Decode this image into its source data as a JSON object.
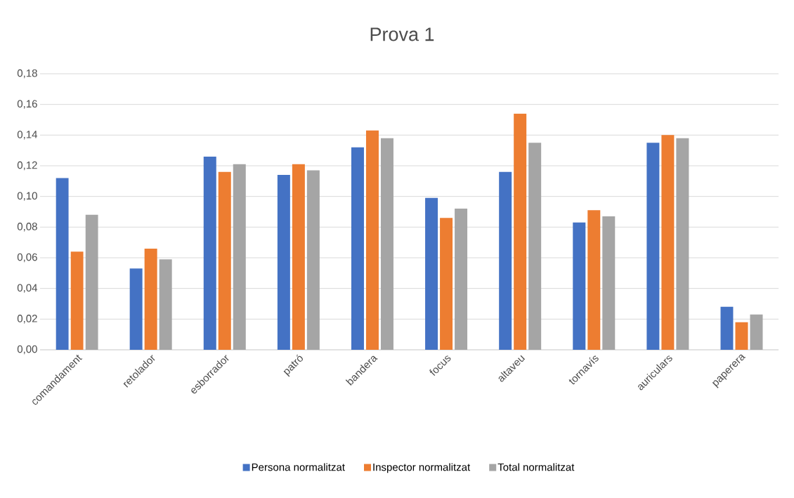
{
  "chart_data": {
    "type": "bar",
    "title": "Prova 1",
    "categories": [
      "comandament",
      "retolador",
      "esborrador",
      "patró",
      "bandera",
      "focus",
      "altaveu",
      "tornavís",
      "auriculars",
      "paperera"
    ],
    "series": [
      {
        "name": "Persona normalitzat",
        "color": "#4472c4",
        "values": [
          0.112,
          0.053,
          0.126,
          0.114,
          0.132,
          0.099,
          0.116,
          0.083,
          0.135,
          0.028
        ]
      },
      {
        "name": "Inspector normalitzat",
        "color": "#ed7d31",
        "values": [
          0.064,
          0.066,
          0.116,
          0.121,
          0.143,
          0.086,
          0.154,
          0.091,
          0.14,
          0.018
        ]
      },
      {
        "name": "Total normalitzat",
        "color": "#a5a5a5",
        "values": [
          0.088,
          0.059,
          0.121,
          0.117,
          0.138,
          0.092,
          0.135,
          0.087,
          0.138,
          0.023
        ]
      }
    ],
    "ylim": [
      0,
      0.18
    ],
    "yticks": [
      {
        "value": 0,
        "label": "0,00"
      },
      {
        "value": 0.02,
        "label": "0,02"
      },
      {
        "value": 0.04,
        "label": "0,04"
      },
      {
        "value": 0.06,
        "label": "0,06"
      },
      {
        "value": 0.08,
        "label": "0,08"
      },
      {
        "value": 0.1,
        "label": "0,10"
      },
      {
        "value": 0.12,
        "label": "0,12"
      },
      {
        "value": 0.14,
        "label": "0,14"
      },
      {
        "value": 0.16,
        "label": "0,16"
      },
      {
        "value": 0.18,
        "label": "0,18"
      }
    ],
    "grid": "y",
    "legend": "bottom"
  }
}
